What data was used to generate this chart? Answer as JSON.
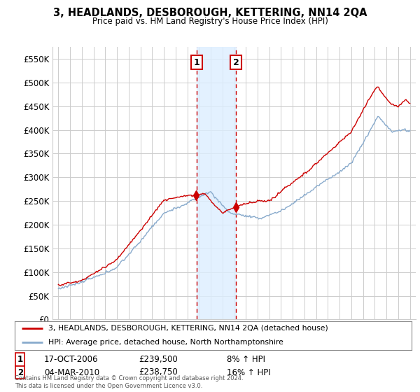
{
  "title": "3, HEADLANDS, DESBOROUGH, KETTERING, NN14 2QA",
  "subtitle": "Price paid vs. HM Land Registry's House Price Index (HPI)",
  "legend_line1": "3, HEADLANDS, DESBOROUGH, KETTERING, NN14 2QA (detached house)",
  "legend_line2": "HPI: Average price, detached house, North Northamptonshire",
  "sale1_date": "17-OCT-2006",
  "sale1_price": "£239,500",
  "sale1_hpi": "8% ↑ HPI",
  "sale1_year": 2006.79,
  "sale1_value": 239500,
  "sale2_date": "04-MAR-2010",
  "sale2_price": "£238,750",
  "sale2_hpi": "16% ↑ HPI",
  "sale2_year": 2010.17,
  "sale2_value": 238750,
  "line_color_red": "#cc0000",
  "line_color_blue": "#88aacc",
  "grid_color": "#cccccc",
  "background_color": "#ffffff",
  "annotation_box_color": "#cc0000",
  "shaded_region_color": "#ddeeff",
  "footnote": "Contains HM Land Registry data © Crown copyright and database right 2024.\nThis data is licensed under the Open Government Licence v3.0.",
  "ylim": [
    0,
    575000
  ],
  "xlim": [
    1994.5,
    2025.5
  ],
  "yticks": [
    0,
    50000,
    100000,
    150000,
    200000,
    250000,
    300000,
    350000,
    400000,
    450000,
    500000,
    550000
  ],
  "ytick_labels": [
    "£0",
    "£50K",
    "£100K",
    "£150K",
    "£200K",
    "£250K",
    "£300K",
    "£350K",
    "£400K",
    "£450K",
    "£500K",
    "£550K"
  ]
}
